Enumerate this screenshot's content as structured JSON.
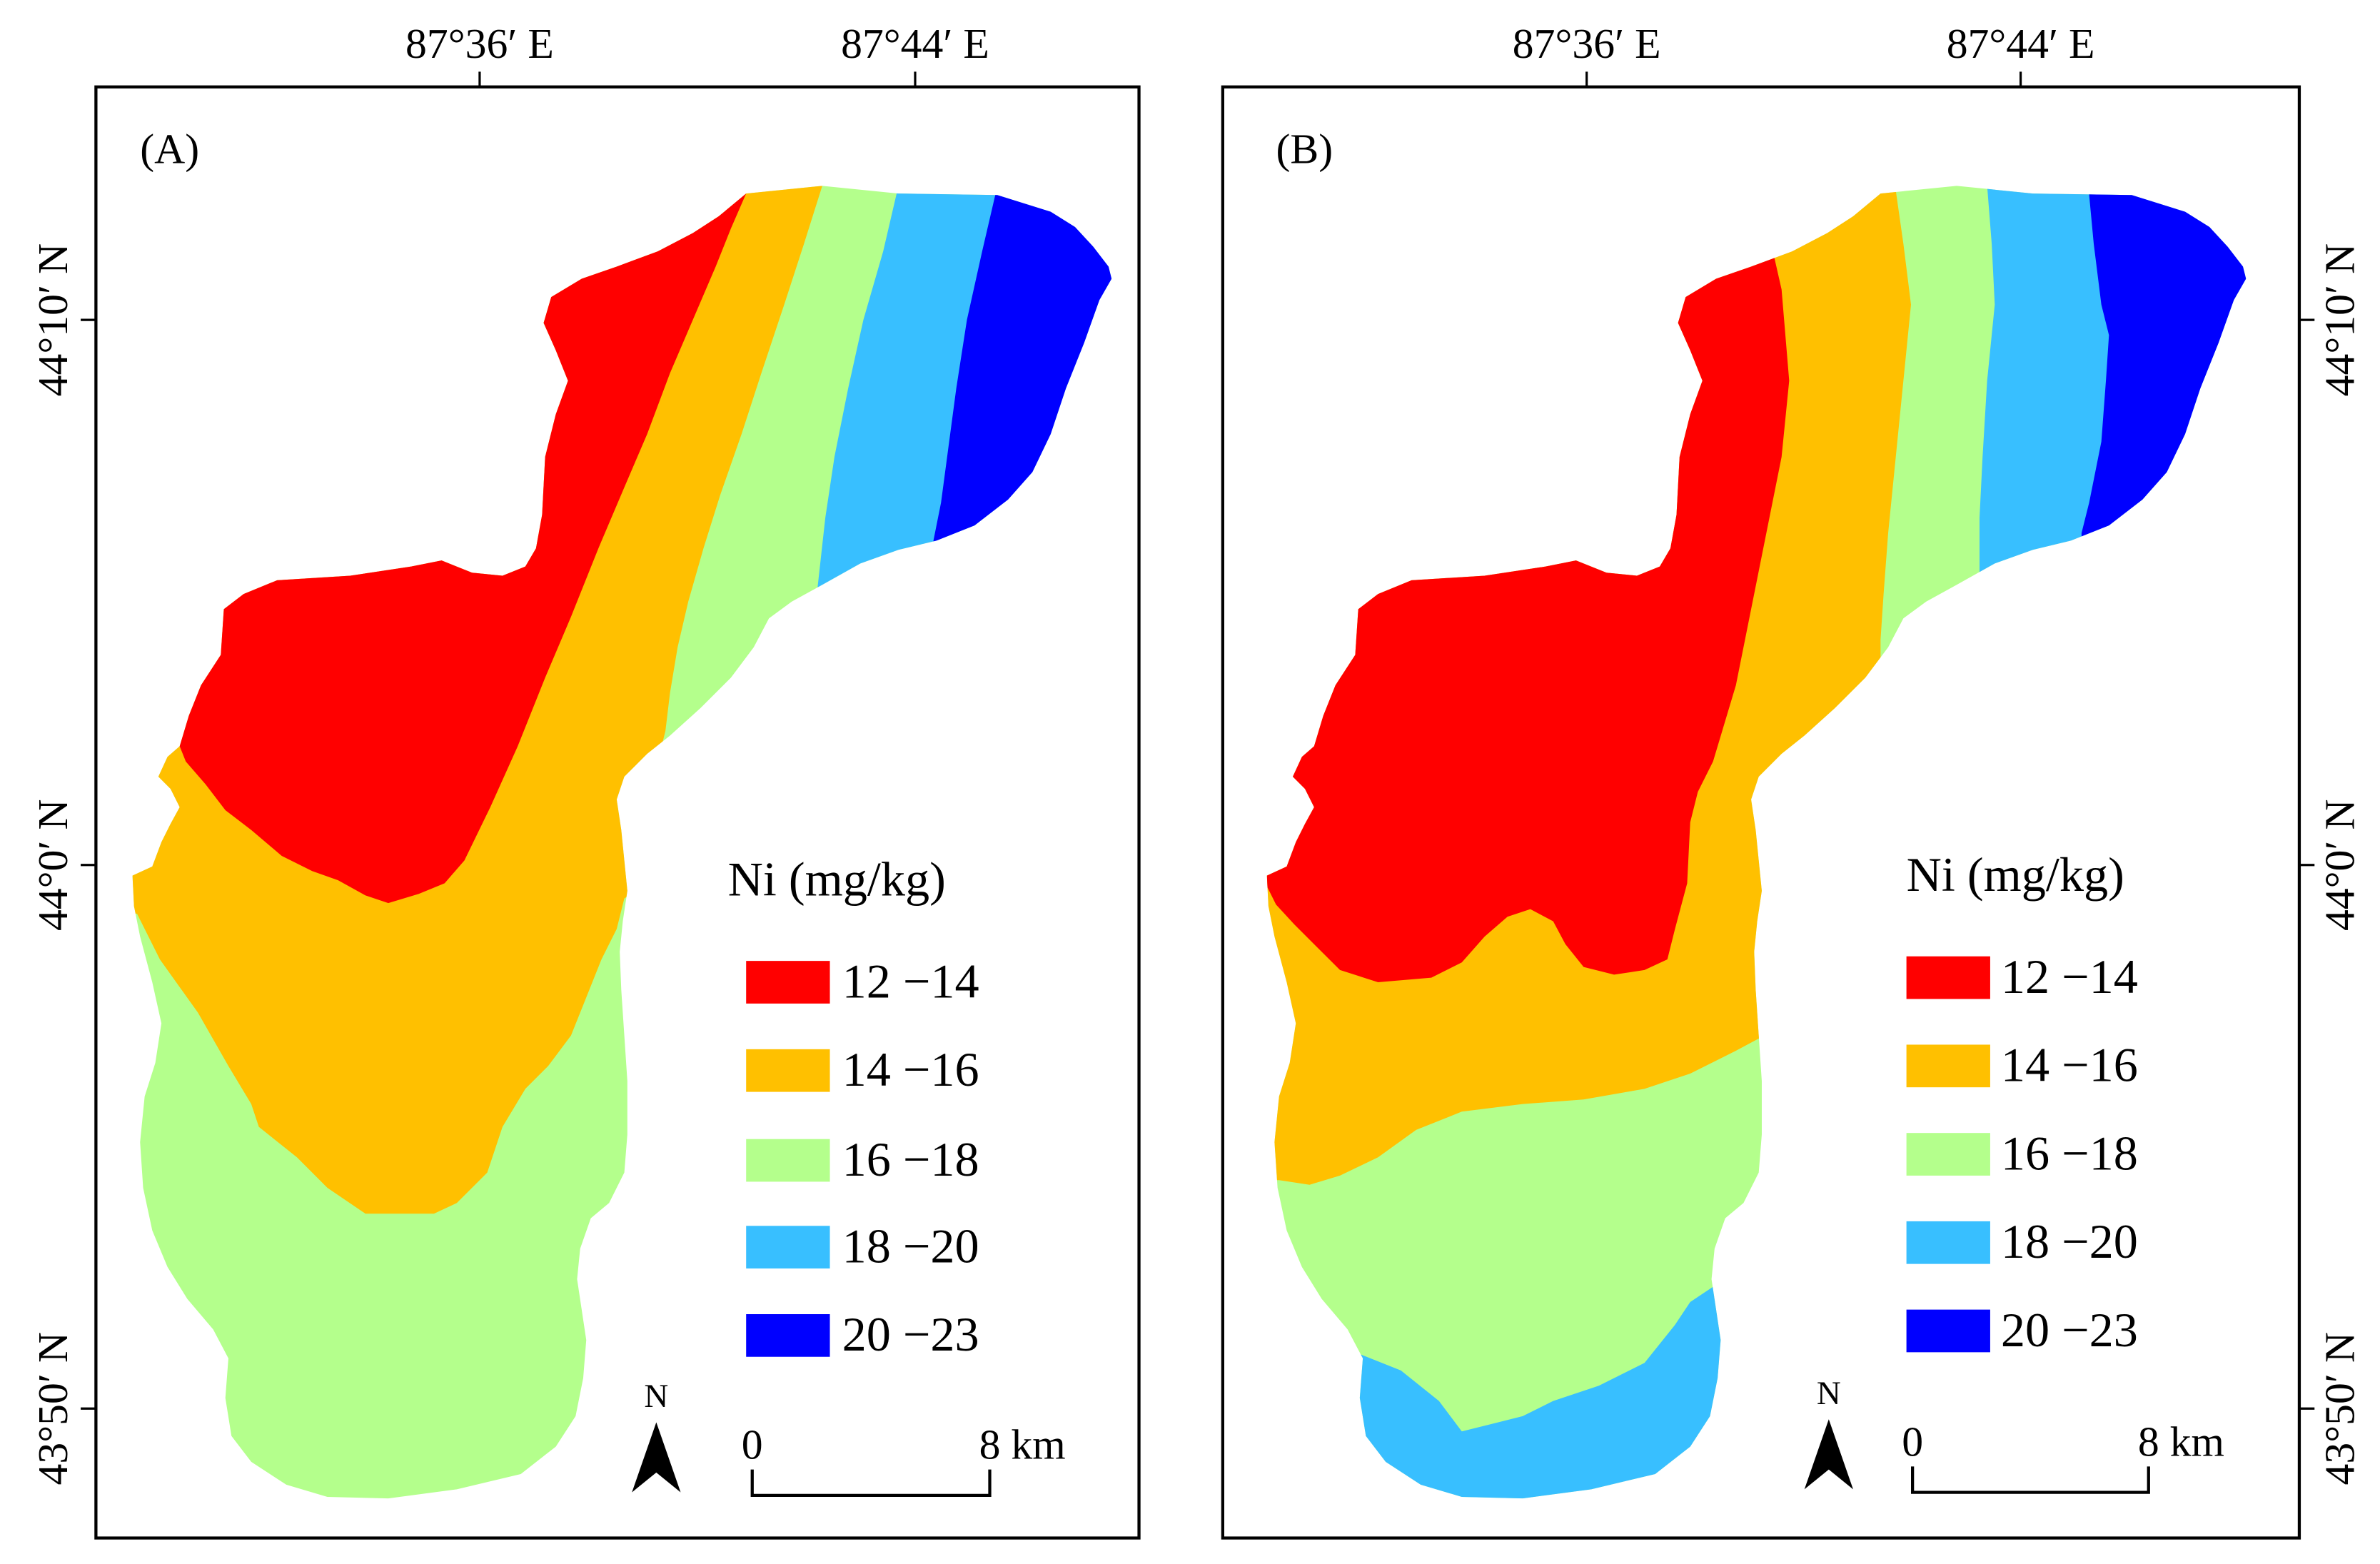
{
  "panels": [
    {
      "label": "(A)",
      "longitude_ticks": [
        "87°36′ E",
        "87°44′ E"
      ],
      "latitude_ticks": [
        "44°10′ N",
        "44°0′ N",
        "43°50′ N"
      ],
      "legend": {
        "title": "Ni (mg/kg)",
        "classes": [
          {
            "label": "12 −14",
            "color": "#FF0000"
          },
          {
            "label": "14 −16",
            "color": "#FFC000"
          },
          {
            "label": "16 −18",
            "color": "#B4FF8C"
          },
          {
            "label": "18 −20",
            "color": "#38BFFF"
          },
          {
            "label": "20 −23",
            "color": "#0000FF"
          }
        ]
      },
      "north_arrow": {
        "label": "N",
        "icon": "north-arrow-icon"
      },
      "scale_bar": {
        "start_label": "0",
        "end_label": "8 km"
      }
    },
    {
      "label": "(B)",
      "longitude_ticks": [
        "87°36′ E",
        "87°44′ E"
      ],
      "latitude_ticks": [
        "44°10′ N",
        "44°0′ N",
        "43°50′ N"
      ],
      "legend": {
        "title": "Ni (mg/kg)",
        "classes": [
          {
            "label": "12 −14",
            "color": "#FF0000"
          },
          {
            "label": "14 −16",
            "color": "#FFC000"
          },
          {
            "label": "16 −18",
            "color": "#B4FF8C"
          },
          {
            "label": "18 −20",
            "color": "#38BFFF"
          },
          {
            "label": "20 −23",
            "color": "#0000FF"
          }
        ]
      },
      "north_arrow": {
        "label": "N",
        "icon": "north-arrow-icon"
      },
      "scale_bar": {
        "start_label": "0",
        "end_label": "8 km"
      }
    }
  ]
}
